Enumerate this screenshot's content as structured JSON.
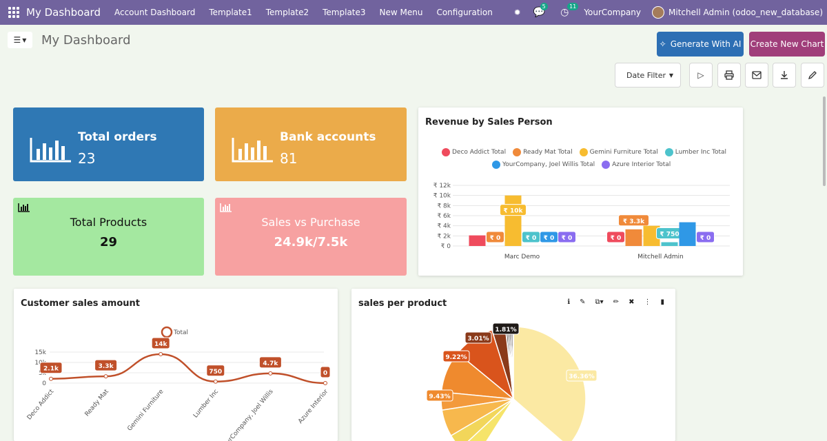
{
  "topbar": {
    "app_title": "My Dashboard",
    "menu": [
      "Account Dashboard",
      "Template1",
      "Template2",
      "Template3",
      "New Menu",
      "Configuration"
    ],
    "chat_count": "5",
    "activity_count": "11",
    "company": "YourCompany",
    "user": "Mitchell Admin (odoo_new_database)"
  },
  "toolbar": {
    "title": "My Dashboard",
    "generate_ai": "Generate With AI",
    "create_chart": "Create New Chart",
    "date_filter": "Date Filter"
  },
  "tiles": {
    "orders": {
      "label": "Total orders",
      "value": "23",
      "color": "#2f78b4"
    },
    "bank": {
      "label": "Bank accounts",
      "value": "81",
      "color": "#ebab4a"
    },
    "products": {
      "label": "Total Products",
      "value": "29",
      "color": "#a4e8a0"
    },
    "sales": {
      "label": "Sales vs Purchase",
      "value": "24.9k/7.5k",
      "color": "#f7a1a1"
    }
  },
  "revenue_chart": {
    "title": "Revenue by Sales Person",
    "legend": [
      {
        "name": "Deco Addict Total",
        "color": "#ef4b5d"
      },
      {
        "name": "Ready Mat Total",
        "color": "#f08a3a"
      },
      {
        "name": "Gemini Furniture Total",
        "color": "#f7bc30"
      },
      {
        "name": "Lumber Inc Total",
        "color": "#4dc3cc"
      },
      {
        "name": "YourCompany, Joel Willis Total",
        "color": "#2f98e6"
      },
      {
        "name": "Azure Interior Total",
        "color": "#8a6df0"
      }
    ],
    "y_ticks": [
      "₹ 12k",
      "₹ 10k",
      "₹ 8k",
      "₹ 6k",
      "₹ 4k",
      "₹ 2k",
      "₹ 0"
    ]
  },
  "customer_chart": {
    "title": "Customer sales amount",
    "legend": "Total",
    "y_ticks": [
      "15k",
      "10k",
      "5k",
      "0"
    ]
  },
  "product_chart": {
    "title": "sales per product",
    "slice_labels": [
      "1.81%",
      "3.01%",
      "9.22%",
      "9.43%",
      "36.36%"
    ]
  },
  "chart_data": [
    {
      "type": "bar",
      "title": "Revenue by Sales Person",
      "categories": [
        "Marc Demo",
        "Mitchell Admin"
      ],
      "ylim": [
        0,
        12000
      ],
      "series": [
        {
          "name": "Deco Addict Total",
          "values": [
            2100,
            0
          ]
        },
        {
          "name": "Ready Mat Total",
          "values": [
            0,
            3300
          ]
        },
        {
          "name": "Gemini Furniture Total",
          "values": [
            10000,
            4000
          ]
        },
        {
          "name": "Lumber Inc Total",
          "values": [
            0,
            750
          ]
        },
        {
          "name": "YourCompany, Joel Willis Total",
          "values": [
            0,
            4700
          ]
        },
        {
          "name": "Azure Interior Total",
          "values": [
            0,
            0
          ]
        }
      ],
      "data_labels": [
        [
          "",
          "₹ 0"
        ],
        [
          "₹ 0",
          "₹ 3.3k"
        ],
        [
          "₹ 10k",
          ""
        ],
        [
          "₹ 0",
          "₹ 750"
        ],
        [
          "₹ 0",
          ""
        ],
        [
          "₹ 0",
          "₹ 0"
        ]
      ]
    },
    {
      "type": "line",
      "title": "Customer sales amount",
      "categories": [
        "Deco Addict",
        "Ready Mat",
        "Gemini Furniture",
        "Lumber Inc",
        "YourCompany, Joel Willis",
        "Azure Interior"
      ],
      "series": [
        {
          "name": "Total",
          "values": [
            2100,
            3300,
            14000,
            750,
            4700,
            0
          ]
        }
      ],
      "data_labels": [
        "2.1k",
        "3.3k",
        "14k",
        "750",
        "4.7k",
        "0"
      ],
      "ylim": [
        0,
        15000
      ]
    },
    {
      "type": "pie",
      "title": "sales per product",
      "values": [
        1.81,
        3.01,
        9.22,
        9.43,
        36.36
      ],
      "colors": [
        "#1f1a17",
        "#8a3a1a",
        "#d9541c",
        "#ef8a2e",
        "#fbe9a3"
      ]
    }
  ]
}
